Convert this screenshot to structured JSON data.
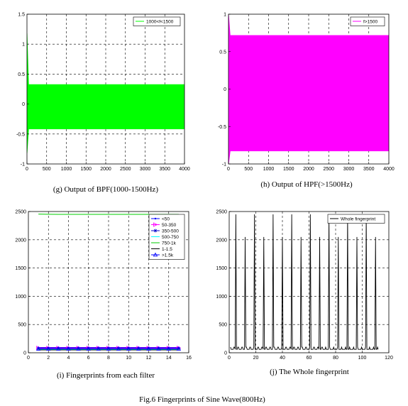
{
  "figure_caption": "Fig.6 Fingerprints of Sine Wave(800Hz)",
  "chart_data": [
    {
      "id": "g",
      "type": "line",
      "caption": "(g) Output of BPF(1000-1500Hz)",
      "xlim": [
        0,
        4000
      ],
      "ylim": [
        -1,
        1.5
      ],
      "xticks": [
        0,
        500,
        1000,
        1500,
        2000,
        2500,
        3000,
        3500,
        4000
      ],
      "yticks": [
        -1,
        -0.5,
        0,
        0.5,
        1,
        1.5
      ],
      "grid": true,
      "legend_position": "top-right",
      "series": [
        {
          "name": "1000<f<1500",
          "color": "#00ff00",
          "kind": "dense-oscillation",
          "band": [
            -0.42,
            0.33
          ],
          "x_range": [
            0,
            4000
          ],
          "spike": {
            "x": 5,
            "y_max": 1.18,
            "y_min": -0.82
          }
        }
      ]
    },
    {
      "id": "h",
      "type": "line",
      "caption": "(h) Output of HPF(>1500Hz)",
      "xlim": [
        0,
        4000
      ],
      "ylim": [
        -1,
        1
      ],
      "xticks": [
        0,
        500,
        1000,
        1500,
        2000,
        2500,
        3000,
        3500,
        4000
      ],
      "yticks": [
        -1,
        -0.5,
        0,
        0.5,
        1
      ],
      "grid": true,
      "legend_position": "top-right",
      "series": [
        {
          "name": "f>1500",
          "color": "#ff00ff",
          "kind": "dense-oscillation",
          "band": [
            -0.83,
            0.72
          ],
          "x_range": [
            0,
            4000
          ],
          "spike": {
            "x": 5,
            "y_max": 1.0,
            "y_min": -1.0
          }
        }
      ]
    },
    {
      "id": "i",
      "type": "line",
      "caption": "(i) Fingerprints from each filter",
      "xlim": [
        0,
        16
      ],
      "ylim": [
        0,
        2500
      ],
      "xticks": [
        0,
        2,
        4,
        6,
        8,
        10,
        12,
        14,
        16
      ],
      "yticks": [
        0,
        500,
        1000,
        1500,
        2000,
        2500
      ],
      "grid": true,
      "legend_position": "top-right",
      "series": [
        {
          "name": "<50",
          "color": "#0000ff",
          "marker": "point",
          "x": [
            1,
            2,
            3,
            4,
            5,
            6,
            7,
            8,
            9,
            10,
            11,
            12,
            13,
            14,
            15
          ],
          "values": [
            95,
            95,
            95,
            95,
            95,
            95,
            95,
            95,
            95,
            95,
            95,
            95,
            95,
            95,
            95
          ]
        },
        {
          "name": "50-350",
          "color": "#ff00ff",
          "marker": "triangle-right",
          "x": [
            1,
            2,
            3,
            4,
            5,
            6,
            7,
            8,
            9,
            10,
            11,
            12,
            13,
            14,
            15
          ],
          "values": [
            85,
            85,
            85,
            85,
            85,
            85,
            85,
            85,
            85,
            85,
            85,
            85,
            85,
            85,
            85
          ]
        },
        {
          "name": "350-500",
          "color": "#0000cc",
          "marker": "star",
          "x": [
            1,
            2,
            3,
            4,
            5,
            6,
            7,
            8,
            9,
            10,
            11,
            12,
            13,
            14,
            15
          ],
          "values": [
            75,
            75,
            75,
            75,
            75,
            75,
            75,
            75,
            75,
            75,
            75,
            75,
            75,
            75,
            75
          ]
        },
        {
          "name": "500-750",
          "color": "#00ffff",
          "marker": "none",
          "x": [
            1,
            2,
            3,
            4,
            5,
            6,
            7,
            8,
            9,
            10,
            11,
            12,
            13,
            14,
            15
          ],
          "values": [
            60,
            60,
            60,
            60,
            60,
            60,
            60,
            60,
            60,
            60,
            60,
            60,
            60,
            60,
            60
          ]
        },
        {
          "name": "750-1k",
          "color": "#00cc00",
          "marker": "none",
          "x": [
            1,
            2,
            3,
            4,
            5,
            6,
            7,
            8,
            9,
            10,
            11,
            12,
            13,
            14,
            15
          ],
          "values": [
            2455,
            2452,
            2450,
            2450,
            2450,
            2450,
            2450,
            2450,
            2450,
            2450,
            2450,
            2450,
            2450,
            2450,
            2450
          ]
        },
        {
          "name": "1-1.5",
          "color": "#000000",
          "marker": "none",
          "x": [
            1,
            2,
            3,
            4,
            5,
            6,
            7,
            8,
            9,
            10,
            11,
            12,
            13,
            14,
            15
          ],
          "values": [
            50,
            50,
            50,
            50,
            50,
            50,
            50,
            50,
            50,
            50,
            50,
            50,
            50,
            50,
            50
          ]
        },
        {
          "name": ">1.5k",
          "color": "#0000ff",
          "marker": "triangle-up",
          "x": [
            1,
            2,
            3,
            4,
            5,
            6,
            7,
            8,
            9,
            10,
            11,
            12,
            13,
            14,
            15
          ],
          "values": [
            70,
            70,
            70,
            70,
            70,
            70,
            70,
            70,
            70,
            70,
            70,
            70,
            70,
            70,
            70
          ]
        }
      ]
    },
    {
      "id": "j",
      "type": "line",
      "caption": "(j) The Whole fingerprint",
      "xlim": [
        0,
        120
      ],
      "ylim": [
        0,
        2500
      ],
      "xticks": [
        0,
        20,
        40,
        60,
        80,
        100,
        120
      ],
      "yticks": [
        0,
        500,
        1000,
        1500,
        2000,
        2500
      ],
      "grid": true,
      "legend_position": "top-right",
      "series": [
        {
          "name": "Whole fingerprint",
          "color": "#000000",
          "kind": "periodic-peaks",
          "x_range": [
            1,
            112
          ],
          "period": 7,
          "first_peak_x": 5,
          "peak_values": [
            2450,
            2050
          ],
          "base_value": 60
        }
      ]
    }
  ]
}
